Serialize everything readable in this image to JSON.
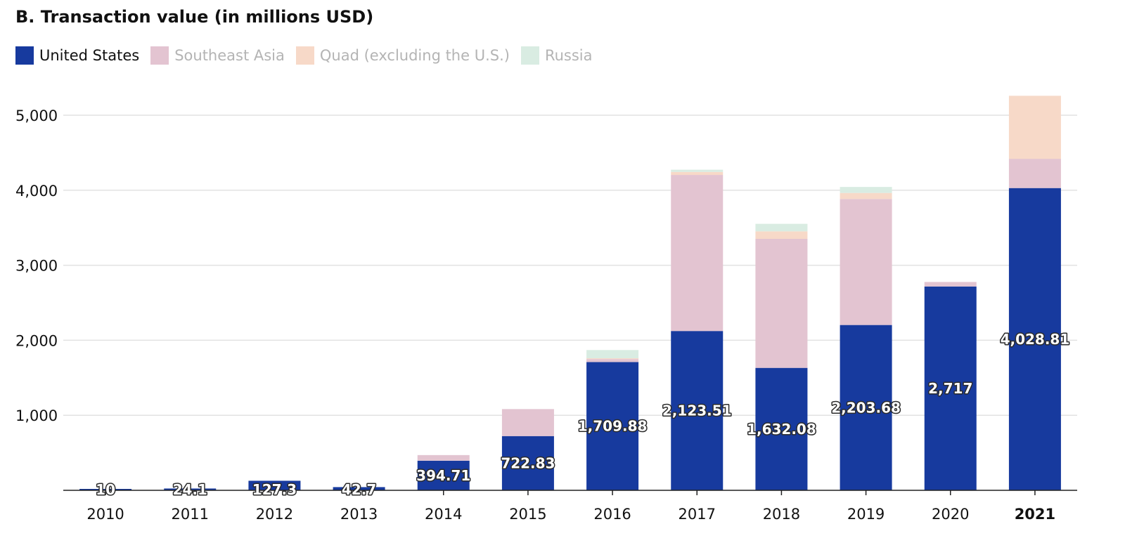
{
  "chart_data": {
    "type": "bar",
    "stacked": true,
    "title": "B. Transaction value (in millions USD)",
    "categories": [
      "2010",
      "2011",
      "2012",
      "2013",
      "2014",
      "2015",
      "2016",
      "2017",
      "2018",
      "2019",
      "2020",
      "2021"
    ],
    "highlighted_category": "2021",
    "ylim": [
      0,
      5400
    ],
    "yticks": [
      1000,
      2000,
      3000,
      4000,
      5000
    ],
    "ytick_labels": [
      "1,000",
      "2,000",
      "3,000",
      "4,000",
      "5,000"
    ],
    "grid": true,
    "legend_position": "top-left",
    "series": [
      {
        "name": "United States",
        "color": "#173a9e",
        "active": true,
        "values": [
          10,
          24.1,
          127.3,
          42.7,
          394.71,
          722.83,
          1709.88,
          2123.51,
          1632.08,
          2203.68,
          2717,
          4028.81
        ],
        "labels": [
          "10",
          "24.1",
          "127.3",
          "42.7",
          "394.71",
          "722.83",
          "1,709.88",
          "2,123.51",
          "1,632.08",
          "2,203.68",
          "2,717",
          "4,028.81"
        ]
      },
      {
        "name": "Southeast Asia",
        "color": "#e3c4d1",
        "active": false,
        "values": [
          0,
          0,
          0,
          0,
          75,
          360,
          40,
          2080,
          1720,
          1680,
          60,
          390
        ]
      },
      {
        "name": "Quad (excluding the U.S.)",
        "color": "#f7d9c8",
        "active": false,
        "values": [
          0,
          0,
          0,
          0,
          0,
          0,
          10,
          40,
          100,
          80,
          0,
          840
        ]
      },
      {
        "name": "Russia",
        "color": "#d9ece2",
        "active": false,
        "values": [
          0,
          0,
          0,
          0,
          0,
          0,
          110,
          30,
          100,
          80,
          0,
          0
        ]
      }
    ]
  }
}
